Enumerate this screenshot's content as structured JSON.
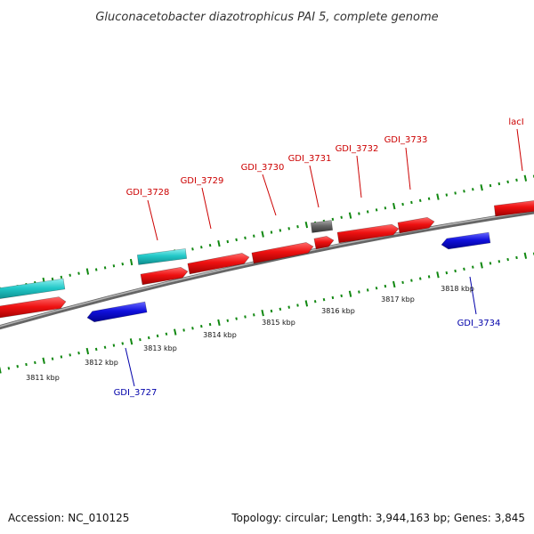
{
  "title": "Gluconacetobacter diazotrophicus PAI 5, complete genome",
  "footer": {
    "accession": "Accession: NC_010125",
    "summary": "Topology: circular; Length: 3,944,163 bp; Genes: 3,845"
  },
  "colors": {
    "forward_cds": "#ee1111",
    "reverse_cds": "#1111dd",
    "rna": "#22c8c8",
    "other": "#666666",
    "backbone": "#888888",
    "ticks": "#118811",
    "forward_label": "#cc0000",
    "reverse_label": "#0000aa"
  },
  "gene_labels_forward": [
    "GDI_3728",
    "GDI_3729",
    "GDI_3730",
    "GDI_3731",
    "GDI_3732",
    "GDI_3733",
    "lacI"
  ],
  "gene_labels_reverse": [
    "GDI_3727",
    "GDI_3734"
  ],
  "kbp_labels": [
    "3811 kbp",
    "3812 kbp",
    "3813 kbp",
    "3814 kbp",
    "3815 kbp",
    "3816 kbp",
    "3817 kbp",
    "3818 kbp"
  ]
}
